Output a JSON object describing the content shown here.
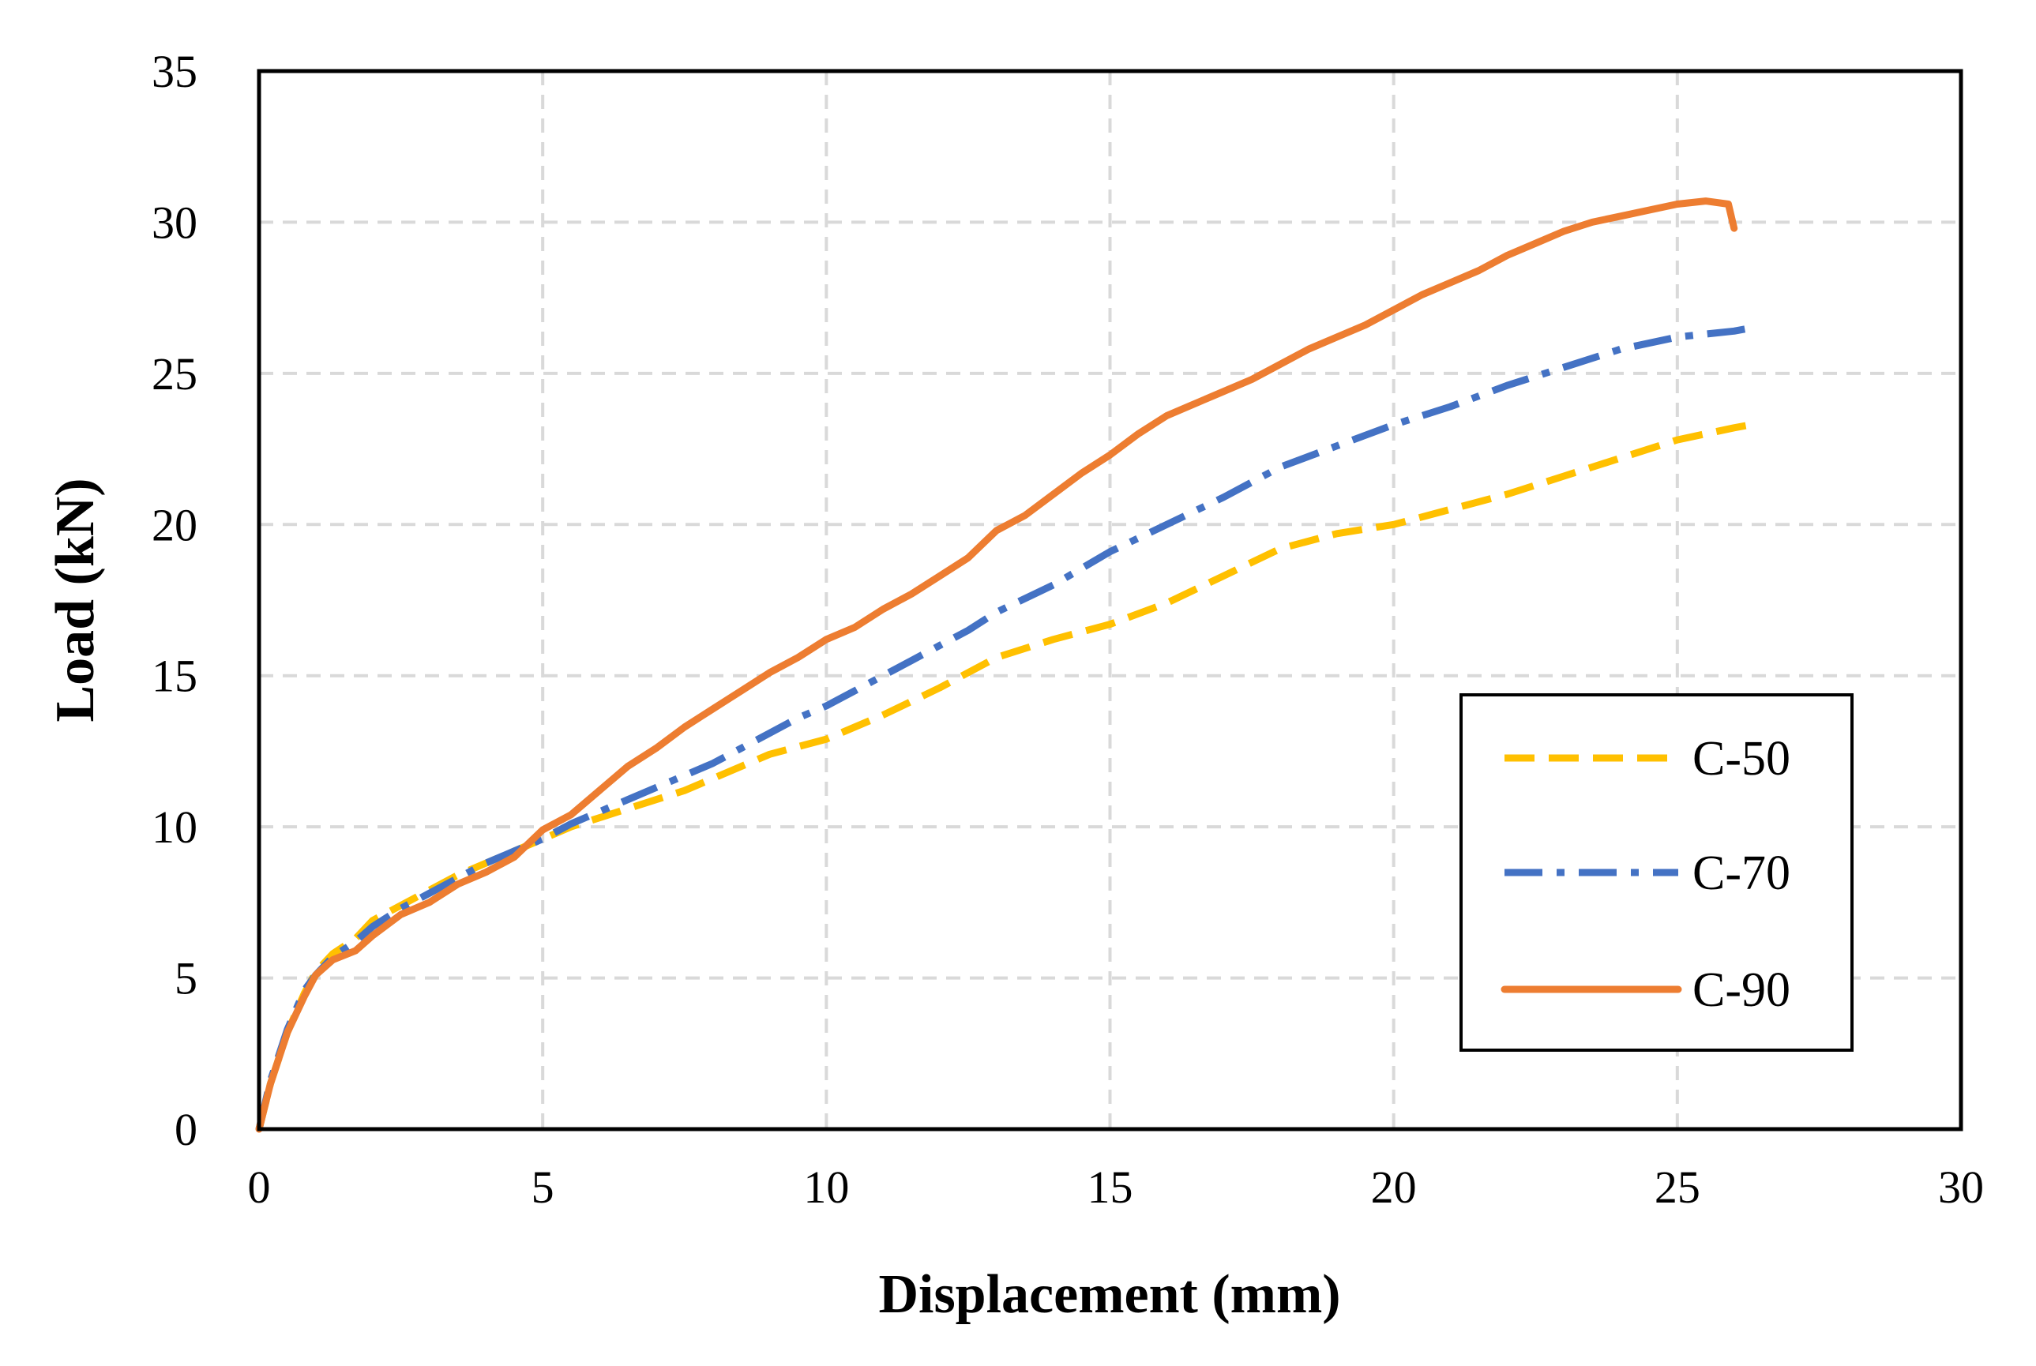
{
  "chart_data": {
    "type": "line",
    "title": "",
    "xlabel": "Displacement (mm)",
    "ylabel": "Load (kN)",
    "xlim": [
      0,
      30
    ],
    "ylim": [
      0,
      35
    ],
    "grid": true,
    "legend_position": "bottom-right",
    "x_ticks": [
      "0",
      "5",
      "10",
      "15",
      "20",
      "25",
      "30"
    ],
    "y_ticks": [
      "0",
      "5",
      "10",
      "15",
      "20",
      "25",
      "30",
      "35"
    ],
    "series": [
      {
        "name": "C-50",
        "color": "#FFC000",
        "style": "dashed",
        "x": [
          0,
          0.2,
          0.5,
          0.8,
          1.0,
          1.3,
          1.7,
          2.0,
          2.5,
          3.0,
          3.5,
          4.0,
          4.5,
          5.0,
          5.5,
          6.0,
          6.5,
          7.0,
          7.5,
          8.0,
          8.5,
          9.0,
          10.0,
          11.0,
          12.0,
          13.0,
          14.0,
          15.0,
          16.0,
          17.0,
          18.0,
          19.0,
          20.0,
          21.0,
          22.0,
          23.0,
          24.0,
          25.0,
          26.0,
          26.3
        ],
        "y": [
          0,
          1.5,
          3.2,
          4.5,
          5.2,
          5.8,
          6.3,
          6.9,
          7.4,
          7.9,
          8.4,
          8.8,
          9.2,
          9.6,
          10.0,
          10.3,
          10.6,
          10.9,
          11.2,
          11.6,
          12.0,
          12.4,
          12.9,
          13.7,
          14.6,
          15.6,
          16.2,
          16.7,
          17.4,
          18.3,
          19.2,
          19.7,
          20.0,
          20.5,
          21.0,
          21.6,
          22.2,
          22.8,
          23.2,
          23.3
        ]
      },
      {
        "name": "C-70",
        "color": "#4472C4",
        "style": "dash-dot",
        "x": [
          0,
          0.2,
          0.5,
          0.8,
          1.0,
          1.3,
          1.7,
          2.0,
          2.5,
          3.0,
          3.5,
          4.0,
          4.5,
          5.0,
          5.5,
          6.0,
          6.5,
          7.0,
          7.5,
          8.0,
          8.5,
          9.0,
          9.5,
          10.0,
          10.5,
          11.0,
          11.5,
          12.0,
          12.5,
          13.0,
          14.0,
          15.0,
          16.0,
          17.0,
          18.0,
          19.0,
          20.0,
          21.0,
          22.0,
          23.0,
          24.0,
          25.0,
          26.0,
          26.3
        ],
        "y": [
          0,
          1.6,
          3.3,
          4.6,
          5.1,
          5.7,
          6.2,
          6.7,
          7.3,
          7.8,
          8.3,
          8.8,
          9.2,
          9.6,
          10.1,
          10.5,
          10.9,
          11.3,
          11.7,
          12.1,
          12.6,
          13.1,
          13.6,
          14.0,
          14.5,
          15.0,
          15.5,
          16.0,
          16.5,
          17.1,
          18.0,
          19.1,
          20.0,
          20.9,
          21.9,
          22.6,
          23.3,
          23.9,
          24.6,
          25.2,
          25.8,
          26.2,
          26.4,
          26.5
        ]
      },
      {
        "name": "C-90",
        "color": "#ED7D31",
        "style": "solid",
        "x": [
          0,
          0.2,
          0.5,
          0.8,
          1.0,
          1.3,
          1.7,
          2.0,
          2.5,
          3.0,
          3.5,
          4.0,
          4.5,
          5.0,
          5.5,
          6.0,
          6.5,
          7.0,
          7.5,
          8.0,
          8.5,
          9.0,
          9.5,
          10.0,
          10.5,
          11.0,
          11.5,
          12.0,
          12.5,
          13.0,
          13.5,
          14.0,
          14.5,
          15.0,
          15.5,
          16.0,
          16.5,
          17.0,
          17.5,
          18.0,
          18.5,
          19.0,
          19.5,
          20.0,
          20.5,
          21.0,
          21.5,
          22.0,
          22.5,
          23.0,
          23.5,
          24.0,
          24.5,
          25.0,
          25.5,
          25.9,
          26.0
        ],
        "y": [
          0,
          1.5,
          3.2,
          4.4,
          5.1,
          5.6,
          5.9,
          6.4,
          7.1,
          7.5,
          8.1,
          8.5,
          9.0,
          9.9,
          10.4,
          11.2,
          12.0,
          12.6,
          13.3,
          13.9,
          14.5,
          15.1,
          15.6,
          16.2,
          16.6,
          17.2,
          17.7,
          18.3,
          18.9,
          19.8,
          20.3,
          21.0,
          21.7,
          22.3,
          23.0,
          23.6,
          24.0,
          24.4,
          24.8,
          25.3,
          25.8,
          26.2,
          26.6,
          27.1,
          27.6,
          28.0,
          28.4,
          28.9,
          29.3,
          29.7,
          30.0,
          30.2,
          30.4,
          30.6,
          30.7,
          30.6,
          29.8
        ]
      }
    ]
  }
}
